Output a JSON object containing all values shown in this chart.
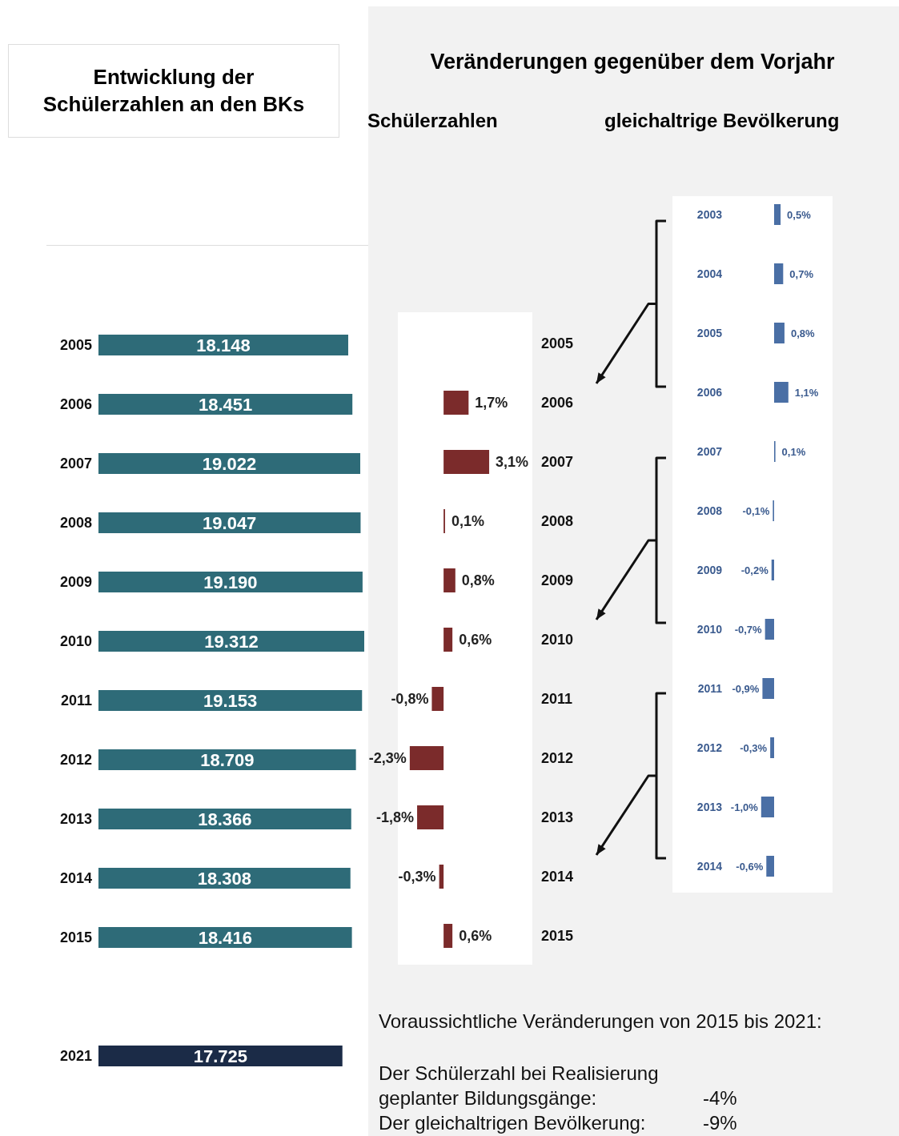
{
  "chart_data": [
    {
      "type": "bar",
      "orientation": "horizontal",
      "title": "Entwicklung der Schülerzahlen an den BKs",
      "categories": [
        "2005",
        "2006",
        "2007",
        "2008",
        "2009",
        "2010",
        "2011",
        "2012",
        "2013",
        "2014",
        "2015",
        null,
        "2021"
      ],
      "values": [
        18148,
        18451,
        19022,
        19047,
        19190,
        19312,
        19153,
        18709,
        18366,
        18308,
        18416,
        null,
        17725
      ],
      "colors": [
        "#2e6b78",
        "#2e6b78",
        "#2e6b78",
        "#2e6b78",
        "#2e6b78",
        "#2e6b78",
        "#2e6b78",
        "#2e6b78",
        "#2e6b78",
        "#2e6b78",
        "#2e6b78",
        "#2e6b78",
        "#1b2b47"
      ],
      "value_labels": [
        "18.148",
        "18.451",
        "19.022",
        "19.047",
        "19.190",
        "19.312",
        "19.153",
        "18.709",
        "18.366",
        "18.308",
        "18.416",
        null,
        "17.725"
      ],
      "tick_labels": "y"
    },
    {
      "type": "bar",
      "orientation": "horizontal",
      "title": "Schülerzahlen",
      "annotations": [
        "Veränderungen gegenüber dem Vorjahr"
      ],
      "categories": [
        "2005",
        "2006",
        "2007",
        "2008",
        "2009",
        "2010",
        "2011",
        "2012",
        "2013",
        "2014",
        "2015"
      ],
      "values": [
        null,
        1.7,
        3.1,
        0.1,
        0.8,
        0.6,
        -0.8,
        -2.3,
        -1.8,
        -0.3,
        0.6
      ],
      "color": "#7b2b2b",
      "value_labels": [
        null,
        "1,7%",
        "3,1%",
        "0,1%",
        "0,8%",
        "0,6%",
        "-0,8%",
        "-2,3%",
        "-1,8%",
        "-0,3%",
        "0,6%"
      ],
      "tick_labels": "y"
    },
    {
      "type": "bar",
      "orientation": "horizontal",
      "title": "gleichaltrige Bevölkerung",
      "annotations": [
        "Voraussichtliche Veränderungen von 2015 bis 2021:",
        "Der Schülerzahl bei Realisierung geplanter Bildungsgänge:",
        "-4%",
        "Der gleichaltrigen Bevölkerung:",
        "-9%"
      ],
      "categories": [
        "2003",
        "2004",
        "2005",
        "2006",
        "2007",
        "2008",
        "2009",
        "2010",
        "2011",
        "2012",
        "2013",
        "2014"
      ],
      "values": [
        0.5,
        0.7,
        0.8,
        1.1,
        0.1,
        -0.1,
        -0.2,
        -0.7,
        -0.9,
        -0.3,
        -1.0,
        -0.6
      ],
      "color": "#4a6fa5",
      "value_labels": [
        "0,5%",
        "0,7%",
        "0,8%",
        "1,1%",
        "0,1%",
        "-0,1%",
        "-0,2%",
        "-0,7%",
        "-0,9%",
        "-0,3%",
        "-1,0%",
        "-0,6%"
      ],
      "tick_labels": "y"
    }
  ]
}
